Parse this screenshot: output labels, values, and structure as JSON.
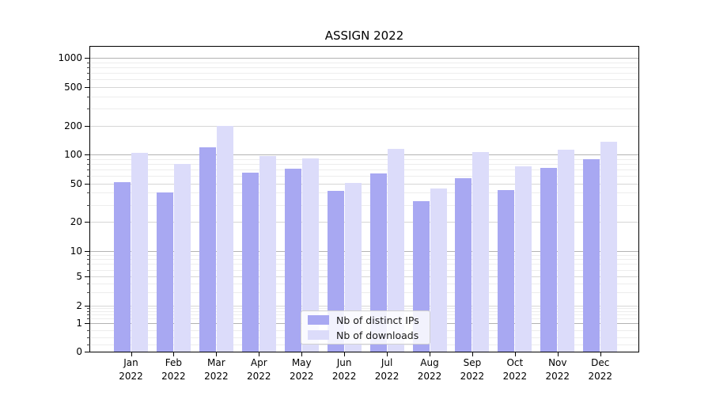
{
  "chart_data": {
    "type": "bar",
    "title": "ASSIGN 2022",
    "categories": [
      {
        "month": "Jan",
        "year": "2022"
      },
      {
        "month": "Feb",
        "year": "2022"
      },
      {
        "month": "Mar",
        "year": "2022"
      },
      {
        "month": "Apr",
        "year": "2022"
      },
      {
        "month": "May",
        "year": "2022"
      },
      {
        "month": "Jun",
        "year": "2022"
      },
      {
        "month": "Jul",
        "year": "2022"
      },
      {
        "month": "Aug",
        "year": "2022"
      },
      {
        "month": "Sep",
        "year": "2022"
      },
      {
        "month": "Oct",
        "year": "2022"
      },
      {
        "month": "Nov",
        "year": "2022"
      },
      {
        "month": "Dec",
        "year": "2022"
      }
    ],
    "series": [
      {
        "name": "Nb of distinct IPs",
        "color": "#a8a8f2",
        "values": [
          52,
          40,
          119,
          65,
          71,
          42,
          64,
          33,
          57,
          43,
          73,
          89
        ]
      },
      {
        "name": "Nb of downloads",
        "color": "#dcdcfa",
        "values": [
          104,
          79,
          200,
          97,
          91,
          51,
          114,
          44,
          107,
          75,
          112,
          136
        ]
      }
    ],
    "yscale": "symlog",
    "ylim": [
      0,
      1000
    ],
    "yticks": [
      0,
      1,
      2,
      5,
      10,
      20,
      50,
      100,
      200,
      500,
      1000
    ],
    "ytick_labels": [
      "0",
      "1",
      "2",
      "5",
      "10",
      "20",
      "50",
      "100",
      "200",
      "500",
      "1000"
    ],
    "grid": true,
    "legend_position": "lower center"
  }
}
